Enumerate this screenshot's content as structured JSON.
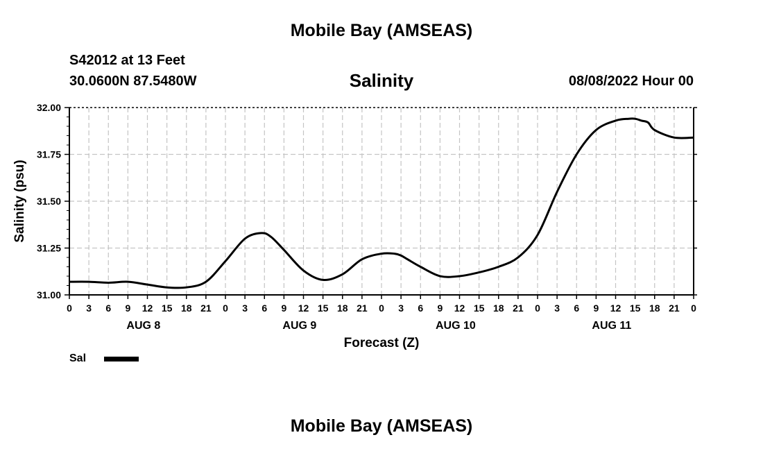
{
  "header": {
    "title": "Mobile Bay (AMSEAS)",
    "station": "S42012 at 13 Feet",
    "coords": "30.0600N  87.5480W",
    "issued": "08/08/2022 Hour 00"
  },
  "footer": {
    "title": "Mobile Bay (AMSEAS)"
  },
  "legend": {
    "label": "Sal",
    "color": "#000000"
  },
  "chart_data": {
    "type": "line",
    "title": "Salinity",
    "xlabel": "Forecast (Z)",
    "ylabel": "Salinity (psu)",
    "x_units": "hours from 08/08/2022 00Z",
    "xlim": [
      0,
      96
    ],
    "ylim": [
      31.0,
      32.0
    ],
    "yticks": [
      "31.00",
      "31.25",
      "31.50",
      "31.75",
      "32.00"
    ],
    "xtick_labels": [
      "0",
      "3",
      "6",
      "9",
      "12",
      "15",
      "18",
      "21",
      "0",
      "3",
      "6",
      "9",
      "12",
      "15",
      "18",
      "21",
      "0",
      "3",
      "6",
      "9",
      "12",
      "15",
      "18",
      "21",
      "0",
      "3",
      "6",
      "9",
      "12",
      "15",
      "18",
      "21",
      "0"
    ],
    "day_labels": [
      "AUG 8",
      "AUG 9",
      "AUG 10",
      "AUG 11"
    ],
    "grid": true,
    "series": [
      {
        "name": "Sal",
        "color": "#000000",
        "x": [
          0,
          3,
          6,
          9,
          12,
          15,
          18,
          21,
          24,
          27,
          29.5,
          31,
          33,
          36,
          39,
          42,
          45,
          48,
          50,
          51,
          52,
          54,
          57,
          60,
          63,
          66,
          69,
          72,
          75,
          78,
          81,
          84,
          86,
          87,
          88,
          89,
          90,
          93,
          96
        ],
        "y": [
          31.07,
          31.07,
          31.065,
          31.07,
          31.055,
          31.04,
          31.04,
          31.07,
          31.18,
          31.3,
          31.33,
          31.31,
          31.24,
          31.13,
          31.08,
          31.11,
          31.19,
          31.22,
          31.22,
          31.21,
          31.19,
          31.15,
          31.1,
          31.1,
          31.12,
          31.15,
          31.2,
          31.32,
          31.55,
          31.75,
          31.88,
          31.93,
          31.94,
          31.94,
          31.93,
          31.92,
          31.88,
          31.84,
          31.84
        ]
      }
    ]
  }
}
